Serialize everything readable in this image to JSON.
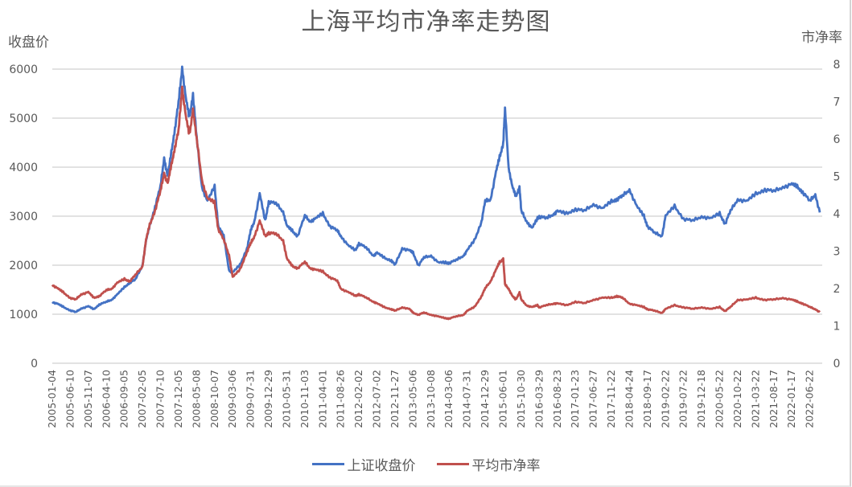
{
  "chart_data": {
    "type": "line",
    "title": "上海平均市净率走势图",
    "ylabel_left": "收盘价",
    "ylabel_right": "市净率",
    "xlabel": "",
    "ylim_left": [
      0,
      6000
    ],
    "ylim_right": [
      0,
      8
    ],
    "yticks_left": [
      "0",
      "1000",
      "2000",
      "3000",
      "4000",
      "5000",
      "6000"
    ],
    "yticks_right": [
      "0",
      "1",
      "2",
      "3",
      "4",
      "5",
      "6",
      "7",
      "8"
    ],
    "grid": true,
    "legend_position": "bottom",
    "x_tick_labels": [
      "2005-01-04",
      "2005-06-10",
      "2005-11-07",
      "2006-04-10",
      "2006-09-05",
      "2007-02-05",
      "2007-07-10",
      "2007-12-05",
      "2008-05-08",
      "2008-10-07",
      "2009-03-06",
      "2009-07-31",
      "2009-12-29",
      "2010-05-31",
      "2010-11-03",
      "2011-04-01",
      "2011-08-26",
      "2012-02-02",
      "2012-07-02",
      "2012-11-27",
      "2013-05-06",
      "2013-10-08",
      "2014-03-06",
      "2014-07-31",
      "2014-12-29",
      "2015-06-01",
      "2015-10-30",
      "2016-03-29",
      "2016-08-23",
      "2017-01-23",
      "2017-06-27",
      "2017-11-22",
      "2018-04-24",
      "2018-09-17",
      "2019-02-22",
      "2019-07-22",
      "2019-12-18",
      "2020-05-22",
      "2020-10-22",
      "2021-03-22",
      "2021-08-17",
      "2022-01-17",
      "2022-06-22"
    ],
    "series": [
      {
        "name": "上证收盘价",
        "axis": "left",
        "color": "#4472c4",
        "x_index": [
          0,
          0.3,
          0.6,
          1,
          1.3,
          1.6,
          2,
          2.3,
          2.6,
          3,
          3.3,
          3.6,
          4,
          4.3,
          4.6,
          5,
          5.2,
          5.4,
          5.7,
          6,
          6.2,
          6.4,
          6.6,
          6.8,
          7,
          7.2,
          7.4,
          7.6,
          7.8,
          8,
          8.3,
          8.6,
          9,
          9.2,
          9.5,
          9.8,
          10,
          10.4,
          10.8,
          11,
          11.2,
          11.5,
          11.8,
          12,
          12.4,
          12.8,
          13,
          13.3,
          13.6,
          14,
          14.3,
          14.6,
          15,
          15.4,
          15.8,
          16,
          16.4,
          16.8,
          17,
          17.4,
          17.8,
          18,
          18.4,
          18.8,
          19,
          19.4,
          19.8,
          20,
          20.3,
          20.6,
          21,
          21.4,
          21.8,
          22,
          22.4,
          22.8,
          23,
          23.4,
          23.8,
          24,
          24.3,
          24.6,
          24.8,
          25,
          25.1,
          25.3,
          25.5,
          25.7,
          25.9,
          26,
          26.3,
          26.6,
          26.9,
          27,
          27.4,
          27.8,
          28,
          28.5,
          29,
          29.5,
          30,
          30.5,
          31,
          31.3,
          31.6,
          32,
          32.4,
          32.8,
          33,
          33.4,
          33.8,
          34,
          34.5,
          35,
          35.5,
          36,
          36.5,
          37,
          37.3,
          37.6,
          38,
          38.5,
          39,
          39.5,
          40,
          40.5,
          41,
          41.3,
          41.6,
          42,
          42.3,
          42.6
        ],
        "values": [
          1250,
          1210,
          1150,
          1080,
          1040,
          1120,
          1160,
          1100,
          1200,
          1250,
          1300,
          1400,
          1550,
          1650,
          1700,
          2000,
          2500,
          2800,
          3200,
          3600,
          4200,
          3800,
          4300,
          4800,
          5300,
          6050,
          5400,
          5000,
          5500,
          4600,
          3600,
          3300,
          3600,
          2800,
          2600,
          1900,
          1850,
          2000,
          2350,
          2700,
          2900,
          3450,
          2900,
          3300,
          3250,
          3100,
          2800,
          2700,
          2600,
          3000,
          2900,
          2950,
          3050,
          2800,
          2700,
          2600,
          2400,
          2300,
          2450,
          2350,
          2200,
          2250,
          2150,
          2100,
          2000,
          2350,
          2300,
          2250,
          2000,
          2150,
          2200,
          2050,
          2050,
          2050,
          2100,
          2200,
          2300,
          2500,
          2900,
          3300,
          3350,
          3900,
          4200,
          4500,
          5170,
          4000,
          3600,
          3400,
          3600,
          3100,
          2900,
          2750,
          2950,
          3000,
          2950,
          3050,
          3100,
          3050,
          3150,
          3100,
          3250,
          3150,
          3300,
          3350,
          3400,
          3550,
          3200,
          3000,
          2800,
          2650,
          2600,
          3000,
          3200,
          2950,
          2900,
          3000,
          2950,
          3050,
          2850,
          3100,
          3350,
          3300,
          3450,
          3550,
          3500,
          3600,
          3650,
          3600,
          3500,
          3300,
          3450,
          3000,
          3300,
          3200,
          3050
        ]
      },
      {
        "name": "平均市净率",
        "axis": "right",
        "color": "#c0504d",
        "x_index": [
          0,
          0.3,
          0.6,
          1,
          1.3,
          1.6,
          2,
          2.3,
          2.6,
          3,
          3.3,
          3.6,
          4,
          4.3,
          4.6,
          5,
          5.2,
          5.4,
          5.7,
          6,
          6.2,
          6.4,
          6.6,
          6.8,
          7,
          7.2,
          7.4,
          7.6,
          7.8,
          8,
          8.3,
          8.6,
          9,
          9.2,
          9.5,
          9.8,
          10,
          10.4,
          10.8,
          11,
          11.2,
          11.5,
          11.8,
          12,
          12.4,
          12.8,
          13,
          13.3,
          13.6,
          14,
          14.3,
          14.6,
          15,
          15.4,
          15.8,
          16,
          16.4,
          16.8,
          17,
          17.4,
          17.8,
          18,
          18.4,
          18.8,
          19,
          19.4,
          19.8,
          20,
          20.3,
          20.6,
          21,
          21.4,
          21.8,
          22,
          22.4,
          22.8,
          23,
          23.4,
          23.8,
          24,
          24.3,
          24.6,
          24.8,
          25,
          25.1,
          25.3,
          25.5,
          25.7,
          25.9,
          26,
          26.3,
          26.6,
          26.9,
          27,
          27.4,
          27.8,
          28,
          28.5,
          29,
          29.5,
          30,
          30.5,
          31,
          31.3,
          31.6,
          32,
          32.4,
          32.8,
          33,
          33.4,
          33.8,
          34,
          34.5,
          35,
          35.5,
          36,
          36.5,
          37,
          37.3,
          37.6,
          38,
          38.5,
          39,
          39.5,
          40,
          40.5,
          41,
          41.3,
          41.6,
          42,
          42.3,
          42.6
        ],
        "values": [
          2.1,
          2.0,
          1.9,
          1.75,
          1.7,
          1.85,
          1.9,
          1.75,
          1.8,
          1.95,
          2.0,
          2.15,
          2.25,
          2.2,
          2.35,
          2.6,
          3.3,
          3.7,
          4.1,
          4.6,
          5.1,
          4.8,
          5.3,
          5.8,
          6.2,
          7.4,
          6.6,
          6.1,
          6.8,
          6.0,
          4.9,
          4.4,
          4.3,
          3.6,
          3.3,
          2.9,
          2.3,
          2.5,
          3.0,
          3.2,
          3.4,
          3.8,
          3.4,
          3.5,
          3.45,
          3.3,
          2.8,
          2.6,
          2.55,
          2.7,
          2.55,
          2.5,
          2.45,
          2.3,
          2.2,
          2.0,
          1.9,
          1.8,
          1.85,
          1.75,
          1.65,
          1.6,
          1.5,
          1.45,
          1.4,
          1.5,
          1.45,
          1.35,
          1.3,
          1.35,
          1.3,
          1.25,
          1.2,
          1.2,
          1.25,
          1.3,
          1.4,
          1.5,
          1.8,
          2.0,
          2.2,
          2.5,
          2.7,
          2.8,
          2.1,
          2.0,
          1.8,
          1.7,
          1.9,
          1.7,
          1.55,
          1.5,
          1.55,
          1.5,
          1.55,
          1.6,
          1.6,
          1.55,
          1.65,
          1.6,
          1.7,
          1.75,
          1.75,
          1.8,
          1.75,
          1.6,
          1.55,
          1.5,
          1.45,
          1.4,
          1.35,
          1.45,
          1.55,
          1.5,
          1.45,
          1.5,
          1.45,
          1.5,
          1.4,
          1.5,
          1.7,
          1.7,
          1.75,
          1.7,
          1.7,
          1.75,
          1.7,
          1.65,
          1.6,
          1.5,
          1.45,
          1.35,
          1.45,
          1.4,
          1.3
        ]
      }
    ]
  },
  "legend": {
    "items": [
      {
        "label": "上证收盘价",
        "color": "#4472c4"
      },
      {
        "label": "平均市净率",
        "color": "#c0504d"
      }
    ]
  }
}
